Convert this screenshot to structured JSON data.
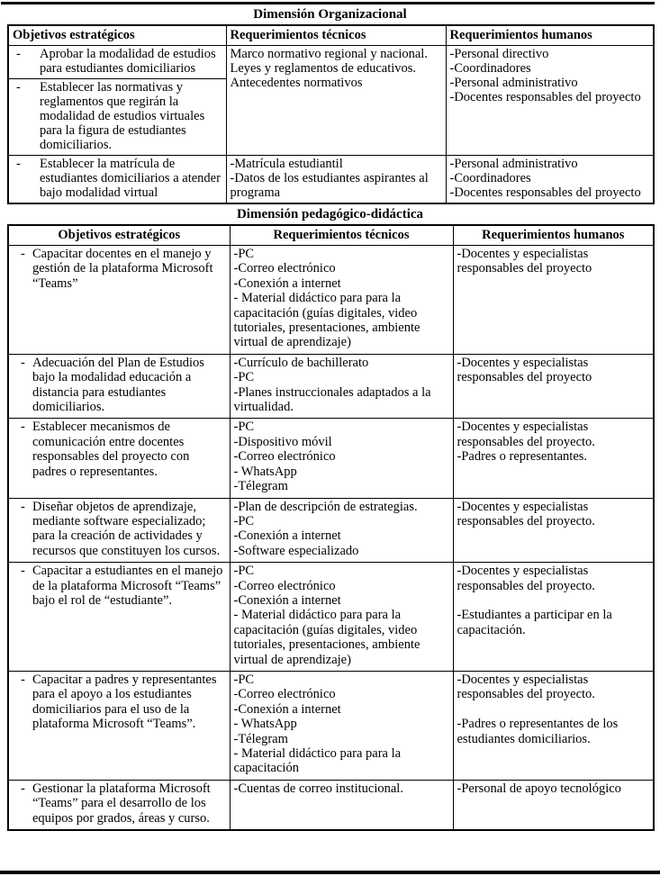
{
  "tables": [
    {
      "title": "Dimensión Organizacional",
      "bullet": "-",
      "columns": [
        "Objetivos estratégicos",
        "Requerimientos técnicos",
        "Requerimientos humanos"
      ],
      "rows": [
        {
          "cells": [
            {
              "kind": "obj",
              "items": [
                "Aprobar la modalidad de estudios para estudiantes domiciliarios"
              ]
            },
            {
              "kind": "list",
              "rowspan": 2,
              "items": [
                "Marco normativo regional y nacional.",
                "Leyes y reglamentos de educativos.",
                "Antecedentes normativos"
              ]
            },
            {
              "kind": "list",
              "rowspan": 2,
              "items": [
                "-Personal directivo",
                "-Coordinadores",
                "-Personal administrativo",
                "-Docentes responsables del proyecto"
              ]
            }
          ]
        },
        {
          "cells": [
            {
              "kind": "obj",
              "items": [
                "Establecer las normativas y reglamentos que regirán la modalidad de estudios virtuales para la figura de estudiantes domiciliarios."
              ]
            }
          ]
        },
        {
          "cells": [
            {
              "kind": "obj",
              "items": [
                "Establecer la matrícula de estudiantes domiciliarios a atender bajo modalidad virtual"
              ]
            },
            {
              "kind": "list",
              "items": [
                "-Matrícula estudiantil",
                "-Datos de los estudiantes aspirantes al programa"
              ]
            },
            {
              "kind": "list",
              "items": [
                "-Personal administrativo",
                "-Coordinadores",
                "-Docentes responsables del proyecto"
              ]
            }
          ]
        }
      ]
    },
    {
      "title": "Dimensión pedagógico-didáctica",
      "bullet": "-",
      "columns": [
        "Objetivos estratégicos",
        "Requerimientos técnicos",
        "Requerimientos humanos"
      ],
      "rows": [
        {
          "cells": [
            {
              "kind": "obj",
              "items": [
                "Capacitar docentes en el manejo y gestión de la plataforma Microsoft “Teams”"
              ]
            },
            {
              "kind": "list",
              "items": [
                "-PC",
                "-Correo electrónico",
                "-Conexión a internet",
                "- Material didáctico para para la capacitación (guías digitales, video tutoriales, presentaciones, ambiente virtual de aprendizaje)"
              ]
            },
            {
              "kind": "list",
              "items": [
                "-Docentes y especialistas responsables del proyecto"
              ]
            }
          ]
        },
        {
          "cells": [
            {
              "kind": "obj",
              "items": [
                "Adecuación del Plan de Estudios bajo la modalidad educación a distancia para estudiantes domiciliarios."
              ]
            },
            {
              "kind": "list",
              "items": [
                "-Currículo de bachillerato",
                "-PC",
                "-Planes instruccionales adaptados a la virtualidad."
              ]
            },
            {
              "kind": "list",
              "items": [
                "-Docentes y especialistas responsables del proyecto"
              ]
            }
          ]
        },
        {
          "cells": [
            {
              "kind": "obj",
              "items": [
                "Establecer mecanismos de comunicación entre docentes responsables del proyecto con padres o representantes."
              ]
            },
            {
              "kind": "list",
              "items": [
                "-PC",
                "-Dispositivo móvil",
                "-Correo electrónico",
                "- WhatsApp",
                "-Télegram"
              ]
            },
            {
              "kind": "list",
              "items": [
                "-Docentes y especialistas responsables del proyecto.",
                "-Padres o representantes."
              ]
            }
          ]
        },
        {
          "cells": [
            {
              "kind": "obj",
              "items": [
                "Diseñar objetos de aprendizaje, mediante software especializado; para la creación de actividades y recursos que constituyen los cursos."
              ]
            },
            {
              "kind": "list",
              "items": [
                "-Plan de descripción de estrategias.",
                "-PC",
                "-Conexión a internet",
                "-Software especializado"
              ]
            },
            {
              "kind": "list",
              "items": [
                "-Docentes y especialistas responsables del proyecto."
              ]
            }
          ]
        },
        {
          "cells": [
            {
              "kind": "obj",
              "items": [
                "Capacitar a estudiantes en el manejo de la plataforma Microsoft “Teams” bajo el rol de “estudiante”."
              ]
            },
            {
              "kind": "list",
              "items": [
                "-PC",
                "-Correo electrónico",
                "-Conexión a internet",
                "- Material didáctico para para la capacitación (guías digitales, video tutoriales, presentaciones, ambiente virtual de aprendizaje)"
              ]
            },
            {
              "kind": "list",
              "items": [
                "-Docentes y especialistas responsables del proyecto.",
                "",
                "-Estudiantes a participar en la capacitación."
              ]
            }
          ]
        },
        {
          "cells": [
            {
              "kind": "obj",
              "items": [
                "Capacitar a padres y representantes para el apoyo a los estudiantes domiciliarios para el uso de la plataforma Microsoft “Teams”."
              ]
            },
            {
              "kind": "list",
              "items": [
                "-PC",
                "-Correo electrónico",
                "-Conexión a internet",
                "- WhatsApp",
                "-Télegram",
                "- Material didáctico para para la capacitación"
              ]
            },
            {
              "kind": "list",
              "items": [
                "-Docentes y especialistas responsables del proyecto.",
                "",
                "-Padres o representantes de los estudiantes domiciliarios."
              ]
            }
          ]
        },
        {
          "cells": [
            {
              "kind": "obj",
              "items": [
                "Gestionar la plataforma Microsoft “Teams” para el desarrollo de los equipos por grados, áreas y curso."
              ]
            },
            {
              "kind": "list",
              "items": [
                "-Cuentas de correo institucional."
              ]
            },
            {
              "kind": "list",
              "items": [
                "-Personal de apoyo tecnológico"
              ]
            }
          ]
        }
      ]
    }
  ]
}
